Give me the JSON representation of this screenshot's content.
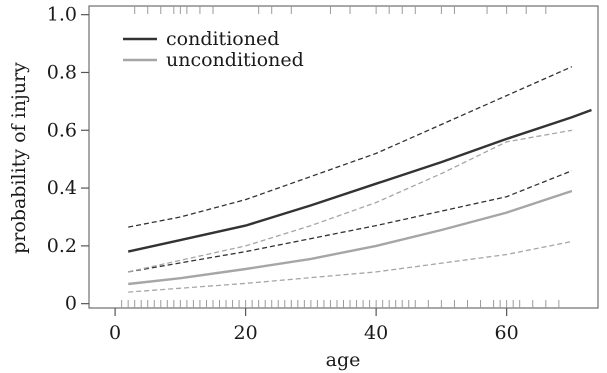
{
  "chart_data": {
    "type": "line",
    "title": "",
    "xlabel": "age",
    "ylabel": "probability of injury",
    "xlim": [
      -4,
      74
    ],
    "ylim": [
      -0.015,
      1.03
    ],
    "xticks": [
      0,
      20,
      40,
      60
    ],
    "yticks": [
      0,
      0.2,
      0.4,
      0.6,
      0.8,
      1.0
    ],
    "xtick_labels": [
      "0",
      "20",
      "40",
      "60"
    ],
    "ytick_labels": [
      "0",
      "0.2",
      "0.4",
      "0.6",
      "0.8",
      "1.0"
    ],
    "grid": false,
    "legend_position": "top-left",
    "series": [
      {
        "name": "conditioned",
        "color": "#333333",
        "x": [
          2,
          10,
          20,
          30,
          40,
          50,
          60,
          70,
          73
        ],
        "y": [
          0.18,
          0.22,
          0.27,
          0.34,
          0.415,
          0.49,
          0.57,
          0.645,
          0.67
        ],
        "lower": {
          "x": [
            2,
            20,
            40,
            60,
            70
          ],
          "y": [
            0.11,
            0.18,
            0.27,
            0.37,
            0.46
          ]
        },
        "upper": {
          "x": [
            2,
            10,
            20,
            30,
            40,
            50,
            60,
            70
          ],
          "y": [
            0.265,
            0.3,
            0.36,
            0.44,
            0.52,
            0.62,
            0.72,
            0.82
          ]
        }
      },
      {
        "name": "unconditioned",
        "color": "#a6a6a6",
        "x": [
          2,
          10,
          20,
          30,
          40,
          50,
          60,
          70
        ],
        "y": [
          0.068,
          0.088,
          0.12,
          0.155,
          0.2,
          0.255,
          0.315,
          0.39
        ],
        "lower": {
          "x": [
            2,
            20,
            40,
            60,
            70
          ],
          "y": [
            0.04,
            0.07,
            0.11,
            0.17,
            0.215
          ]
        },
        "upper": {
          "x": [
            2,
            10,
            20,
            30,
            40,
            50,
            60,
            70
          ],
          "y": [
            0.11,
            0.15,
            0.2,
            0.27,
            0.35,
            0.45,
            0.56,
            0.6
          ]
        }
      }
    ],
    "rug_top": [
      3,
      5,
      7,
      9,
      10,
      11,
      13,
      15,
      22,
      24,
      27,
      33,
      36,
      40,
      42,
      44,
      46,
      50,
      52,
      57,
      60,
      63,
      66
    ],
    "rug_bottom": [
      1,
      2,
      3,
      4,
      5,
      6,
      7,
      8,
      9,
      10,
      11,
      12,
      13,
      14,
      15,
      16,
      17,
      18,
      19,
      20,
      21,
      22,
      23,
      24,
      25,
      26,
      27,
      28,
      29,
      30,
      31,
      32,
      33,
      34,
      35,
      36,
      37,
      38,
      39,
      40,
      41,
      42,
      43,
      44,
      45,
      46,
      48,
      50,
      52,
      54,
      56,
      58,
      59,
      60,
      61,
      62,
      64,
      66,
      68
    ]
  }
}
